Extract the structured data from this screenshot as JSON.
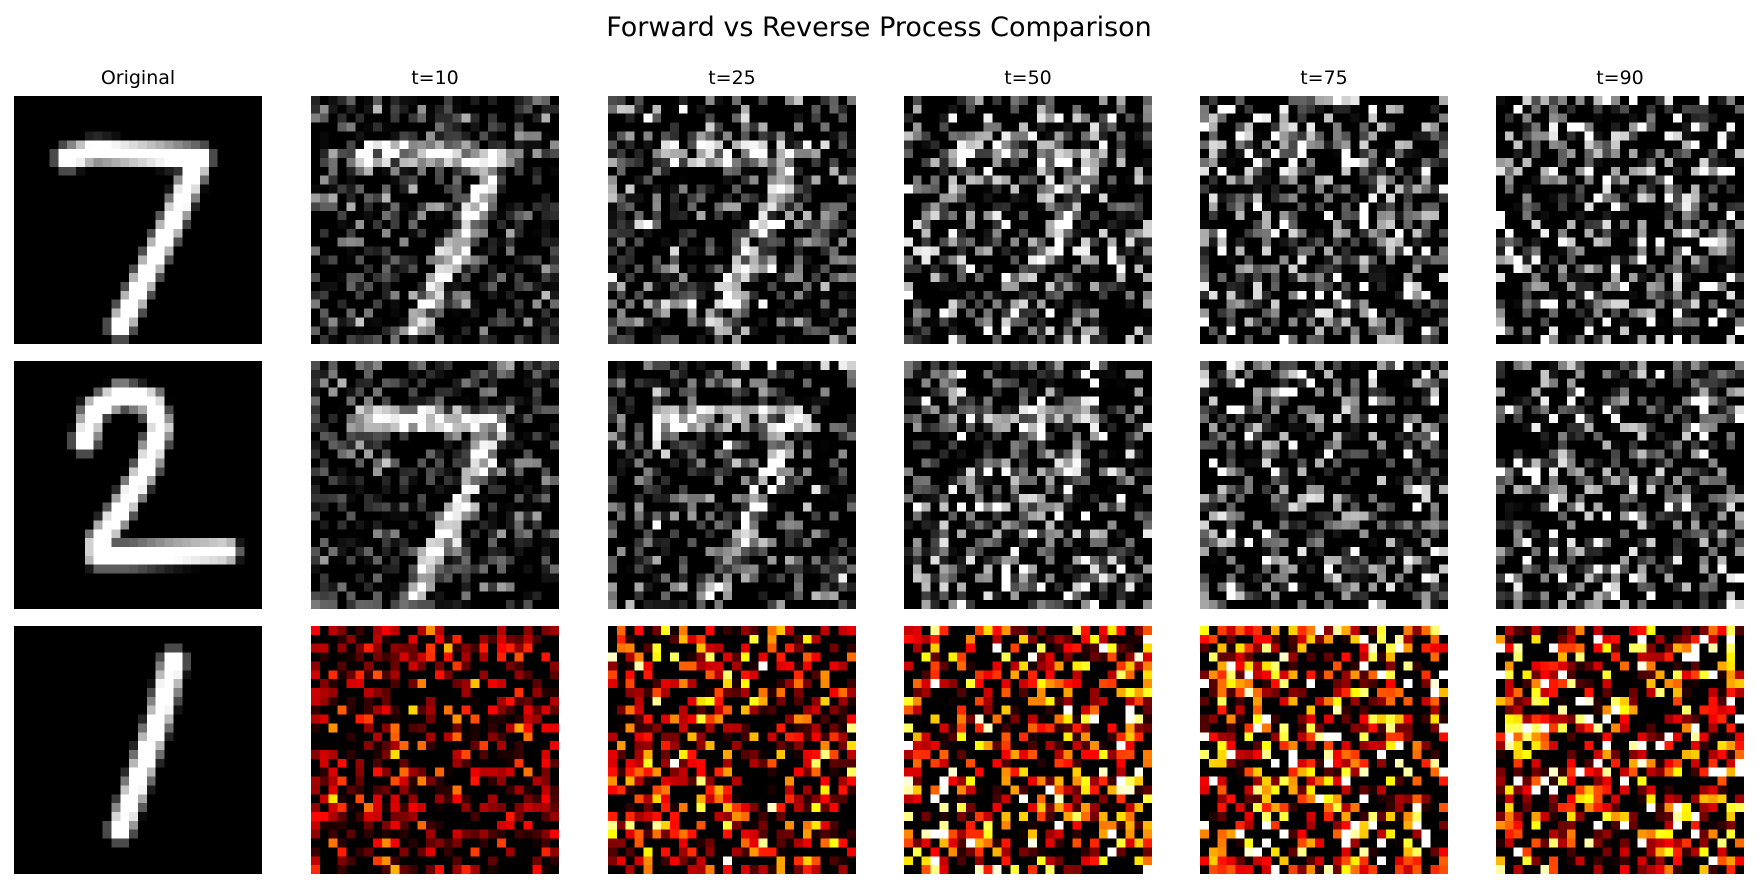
{
  "figure": {
    "title": "Forward vs Reverse Process Comparison"
  },
  "columns": [
    {
      "label": "Original"
    },
    {
      "label": "t=10"
    },
    {
      "label": "t=25"
    },
    {
      "label": "t=50"
    },
    {
      "label": "t=75"
    },
    {
      "label": "t=90"
    }
  ],
  "rows": [
    {
      "digit": "7",
      "colormap": "gray"
    },
    {
      "digit": "2",
      "colormap": "gray"
    },
    {
      "digit": "1",
      "colormap": "hot"
    }
  ],
  "panels": [
    [
      {
        "content": "digit 7",
        "noise": 0.0
      },
      {
        "content": "digit 7",
        "noise": 0.25
      },
      {
        "content": "digit 7",
        "noise": 0.5
      },
      {
        "content": "digit 7",
        "noise": 0.78
      },
      {
        "content": "digit 7",
        "noise": 0.92
      },
      {
        "content": "noise",
        "noise": 1.0
      }
    ],
    [
      {
        "content": "digit 2",
        "noise": 0.0
      },
      {
        "content": "digit 7",
        "noise": 0.25
      },
      {
        "content": "digit 7",
        "noise": 0.5
      },
      {
        "content": "digit 7",
        "noise": 0.75
      },
      {
        "content": "noise",
        "noise": 0.92
      },
      {
        "content": "noise",
        "noise": 1.0
      }
    ],
    [
      {
        "content": "digit 1",
        "noise": 0.0
      },
      {
        "content": "noise",
        "noise": 0.22
      },
      {
        "content": "noise",
        "noise": 0.5
      },
      {
        "content": "noise",
        "noise": 0.8
      },
      {
        "content": "noise",
        "noise": 0.92
      },
      {
        "content": "noise",
        "noise": 1.0
      }
    ]
  ]
}
